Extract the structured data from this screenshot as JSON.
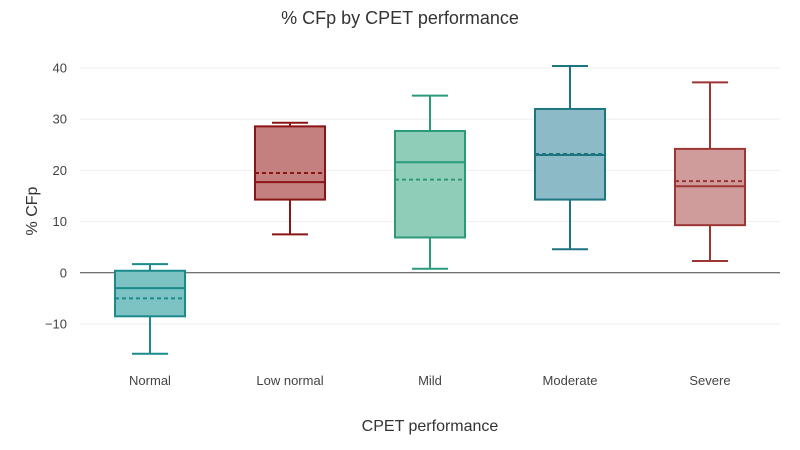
{
  "chart_data": {
    "type": "box",
    "title": "% CFp by CPET performance",
    "xlabel": "CPET performance",
    "ylabel": "% CFp",
    "ylim": [
      -18,
      44
    ],
    "yticks": [
      -10,
      0,
      10,
      20,
      30,
      40
    ],
    "ytick_labels": [
      "−10",
      "0",
      "10",
      "20",
      "30",
      "40"
    ],
    "grid": true,
    "categories": [
      "Normal",
      "Low normal",
      "Mild",
      "Moderate",
      "Severe"
    ],
    "boxes": [
      {
        "category": "Normal",
        "min": -15.8,
        "q1": -8.5,
        "median": -3.0,
        "q3": 0.4,
        "max": 1.7,
        "mean": -5.0,
        "fill": "#7ec3c3",
        "stroke": "#1a8a8a",
        "mean_color": "#1a8a8a"
      },
      {
        "category": "Low normal",
        "min": 7.5,
        "q1": 14.3,
        "median": 17.7,
        "q3": 28.6,
        "max": 29.3,
        "mean": 19.5,
        "fill": "#c47f7f",
        "stroke": "#8b1414",
        "mean_color": "#8b1414"
      },
      {
        "category": "Mild",
        "min": 0.8,
        "q1": 6.9,
        "median": 21.6,
        "q3": 27.7,
        "max": 34.6,
        "mean": 18.2,
        "fill": "#8fcdb9",
        "stroke": "#2a9a7a",
        "mean_color": "#2a9a7a"
      },
      {
        "category": "Moderate",
        "min": 4.6,
        "q1": 14.3,
        "median": 23.0,
        "q3": 32.0,
        "max": 40.4,
        "mean": 23.2,
        "fill": "#8cbac6",
        "stroke": "#1e7582",
        "mean_color": "#1e7582"
      },
      {
        "category": "Severe",
        "min": 2.3,
        "q1": 9.3,
        "median": 16.9,
        "q3": 24.2,
        "max": 37.2,
        "mean": 17.9,
        "fill": "#d09b9b",
        "stroke": "#9e3535",
        "mean_color": "#9e3535"
      }
    ]
  }
}
